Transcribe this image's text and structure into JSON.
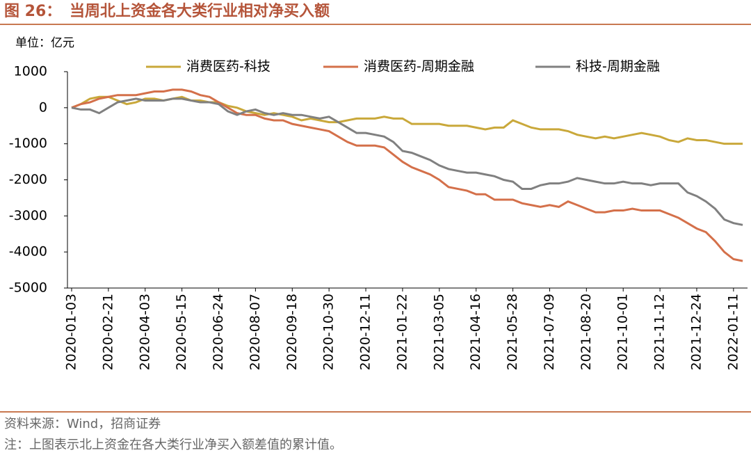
{
  "title_prefix": "图 26：",
  "title": "当周北上资金各大类行业相对净买入额",
  "unit": "单位：亿元",
  "source": "资料来源：Wind，招商证券",
  "note": "注：上图表示北上资金在各大类行业净买入额差值的累计值。",
  "chart_data": {
    "type": "line",
    "categories": [
      "2020-01-03",
      null,
      null,
      null,
      "2020-02-21",
      null,
      null,
      null,
      "2020-04-03",
      null,
      null,
      null,
      "2020-05-15",
      null,
      null,
      null,
      "2020-06-24",
      null,
      null,
      null,
      "2020-08-07",
      null,
      null,
      null,
      "2020-09-18",
      null,
      null,
      null,
      "2020-10-30",
      null,
      null,
      null,
      "2020-12-11",
      null,
      null,
      null,
      "2021-01-22",
      null,
      null,
      null,
      "2021-03-05",
      null,
      null,
      null,
      "2021-04-16",
      null,
      null,
      null,
      "2021-05-28",
      null,
      null,
      null,
      "2021-07-09",
      null,
      null,
      null,
      "2021-08-20",
      null,
      null,
      null,
      "2021-10-01",
      null,
      null,
      null,
      "2021-11-12",
      null,
      null,
      null,
      "2021-12-24",
      null,
      null,
      null,
      "2022-01-11",
      null
    ],
    "series": [
      {
        "name": "消费医药-科技",
        "color": "#c9a83a",
        "values": [
          0,
          100,
          250,
          300,
          300,
          200,
          100,
          150,
          250,
          250,
          200,
          250,
          300,
          200,
          200,
          150,
          150,
          50,
          0,
          -100,
          -150,
          -200,
          -150,
          -200,
          -250,
          -350,
          -300,
          -350,
          -400,
          -400,
          -350,
          -300,
          -300,
          -300,
          -250,
          -300,
          -300,
          -450,
          -450,
          -450,
          -450,
          -500,
          -500,
          -500,
          -550,
          -600,
          -550,
          -550,
          -350,
          -450,
          -550,
          -600,
          -600,
          -600,
          -650,
          -750,
          -800,
          -850,
          -800,
          -850,
          -800,
          -750,
          -700,
          -750,
          -800,
          -900,
          -950,
          -850,
          -900,
          -900,
          -950,
          -1000,
          -1000,
          -1000
        ]
      },
      {
        "name": "消费医药-周期金融",
        "color": "#d4704a",
        "values": [
          0,
          100,
          150,
          250,
          300,
          350,
          350,
          350,
          400,
          450,
          450,
          500,
          500,
          450,
          350,
          300,
          150,
          0,
          -150,
          -200,
          -200,
          -300,
          -350,
          -350,
          -450,
          -500,
          -550,
          -600,
          -650,
          -800,
          -950,
          -1050,
          -1050,
          -1050,
          -1100,
          -1300,
          -1500,
          -1650,
          -1750,
          -1850,
          -2000,
          -2200,
          -2250,
          -2300,
          -2400,
          -2400,
          -2550,
          -2550,
          -2550,
          -2650,
          -2700,
          -2750,
          -2700,
          -2750,
          -2600,
          -2700,
          -2800,
          -2900,
          -2900,
          -2850,
          -2850,
          -2800,
          -2850,
          -2850,
          -2850,
          -2950,
          -3050,
          -3200,
          -3350,
          -3450,
          -3700,
          -4000,
          -4200,
          -4250
        ]
      },
      {
        "name": "科技-周期金融",
        "color": "#808080",
        "values": [
          0,
          -50,
          -50,
          -150,
          0,
          150,
          200,
          250,
          200,
          200,
          200,
          250,
          250,
          200,
          150,
          150,
          100,
          -100,
          -200,
          -100,
          -50,
          -150,
          -200,
          -150,
          -200,
          -200,
          -250,
          -300,
          -250,
          -400,
          -550,
          -700,
          -700,
          -750,
          -800,
          -950,
          -1200,
          -1250,
          -1350,
          -1450,
          -1600,
          -1700,
          -1750,
          -1800,
          -1800,
          -1850,
          -1900,
          -2000,
          -2050,
          -2250,
          -2250,
          -2150,
          -2100,
          -2100,
          -2050,
          -1950,
          -2000,
          -2050,
          -2100,
          -2100,
          -2050,
          -2100,
          -2100,
          -2150,
          -2100,
          -2100,
          -2100,
          -2350,
          -2450,
          -2600,
          -2800,
          -3100,
          -3200,
          -3250
        ]
      }
    ],
    "ylim": [
      -5000,
      1000
    ],
    "yticks": [
      1000,
      0,
      -1000,
      -2000,
      -3000,
      -4000,
      -5000
    ]
  }
}
